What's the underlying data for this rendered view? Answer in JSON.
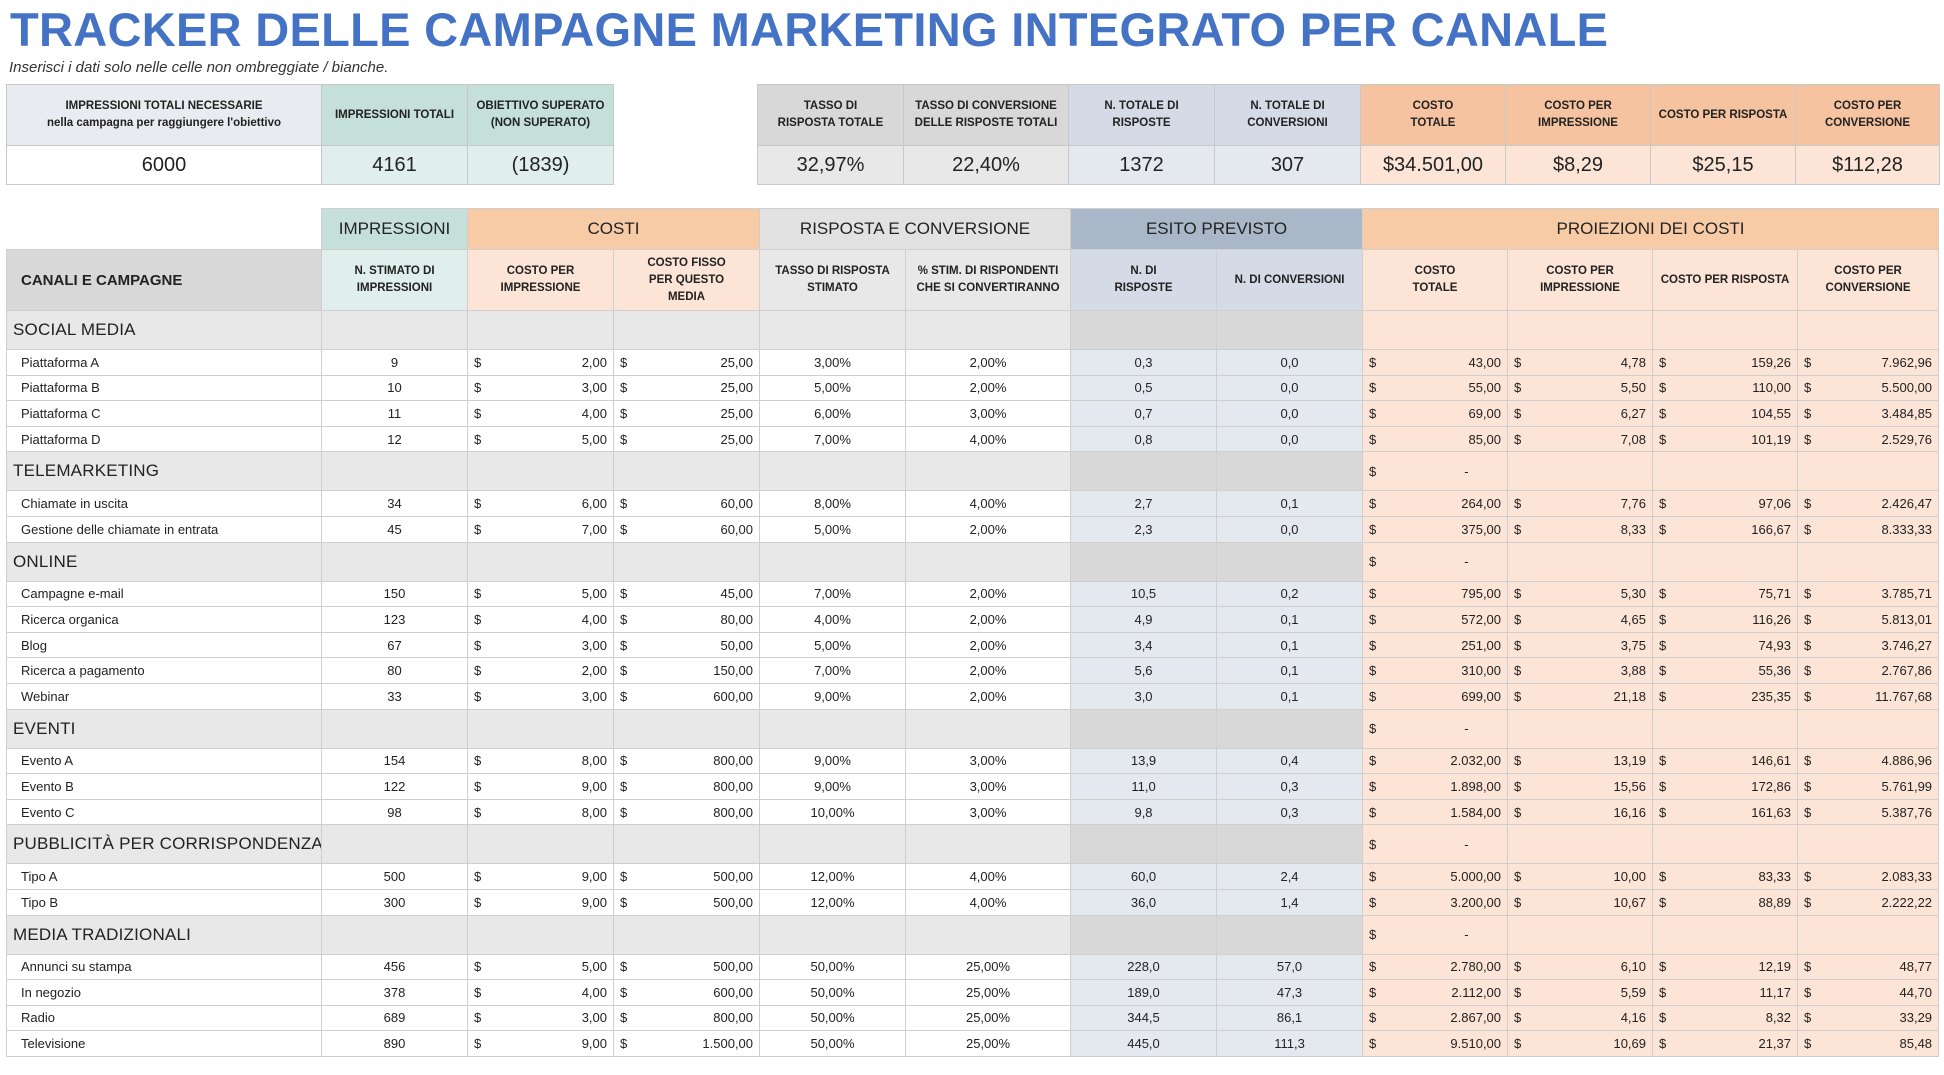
{
  "header": {
    "title": "TRACKER DELLE CAMPAGNE MARKETING INTEGRATO PER CANALE",
    "subtitle": "Inserisci i dati solo nelle celle non ombreggiate / bianche."
  },
  "kpi_left": {
    "labels": [
      "IMPRESSIONI TOTALI NECESSARIE\nnella campagna per raggiungere l'obiettivo",
      "IMPRESSIONI TOTALI",
      "OBIETTIVO SUPERATO\n(NON SUPERATO)"
    ],
    "values": [
      "6000",
      "4161",
      "(1839)"
    ]
  },
  "kpi_right": {
    "labels": [
      "TASSO DI\nRISPOSTA TOTALE",
      "TASSO DI CONVERSIONE\nDELLE RISPOSTE TOTALI",
      "N. TOTALE DI\nRISPOSTE",
      "N. TOTALE DI\nCONVERSIONI",
      "COSTO\nTOTALE",
      "COSTO PER\nIMPRESSIONE",
      "COSTO PER RISPOSTA",
      "COSTO PER\nCONVERSIONE"
    ],
    "values": [
      "32,97%",
      "22,40%",
      "1372",
      "307",
      "$34.501,00",
      "$8,29",
      "$25,15",
      "$112,28"
    ]
  },
  "groups": [
    "IMPRESSIONI",
    "COSTI",
    "RISPOSTA E CONVERSIONE",
    "ESITO PREVISTO",
    "PROIEZIONI DEI COSTI"
  ],
  "columns": [
    "CANALI E CAMPAGNE",
    "N. STIMATO DI\nIMPRESSIONI",
    "COSTO PER\nIMPRESSIONE",
    "COSTO FISSO\nPER QUESTO\nMEDIA",
    "TASSO DI RISPOSTA\nSTIMATO",
    "% STIM. DI RISPONDENTI\nCHE SI CONVERTIRANNO",
    "N. DI\nRISPOSTE",
    "N. DI CONVERSIONI",
    "COSTO\nTOTALE",
    "COSTO PER\nIMPRESSIONE",
    "COSTO PER RISPOSTA",
    "COSTO PER\nCONVERSIONE"
  ],
  "currency_symbol": "$",
  "dash": "-",
  "sections": [
    {
      "name": "SOCIAL MEDIA",
      "total": "",
      "rows": [
        [
          "Piattaforma A",
          "9",
          "2,00",
          "25,00",
          "3,00%",
          "2,00%",
          "0,3",
          "0,0",
          "43,00",
          "4,78",
          "159,26",
          "7.962,96"
        ],
        [
          "Piattaforma B",
          "10",
          "3,00",
          "25,00",
          "5,00%",
          "2,00%",
          "0,5",
          "0,0",
          "55,00",
          "5,50",
          "110,00",
          "5.500,00"
        ],
        [
          "Piattaforma C",
          "11",
          "4,00",
          "25,00",
          "6,00%",
          "3,00%",
          "0,7",
          "0,0",
          "69,00",
          "6,27",
          "104,55",
          "3.484,85"
        ],
        [
          "Piattaforma D",
          "12",
          "5,00",
          "25,00",
          "7,00%",
          "4,00%",
          "0,8",
          "0,0",
          "85,00",
          "7,08",
          "101,19",
          "2.529,76"
        ]
      ]
    },
    {
      "name": "TELEMARKETING",
      "total": "-",
      "rows": [
        [
          "Chiamate in uscita",
          "34",
          "6,00",
          "60,00",
          "8,00%",
          "4,00%",
          "2,7",
          "0,1",
          "264,00",
          "7,76",
          "97,06",
          "2.426,47"
        ],
        [
          "Gestione delle chiamate in entrata",
          "45",
          "7,00",
          "60,00",
          "5,00%",
          "2,00%",
          "2,3",
          "0,0",
          "375,00",
          "8,33",
          "166,67",
          "8.333,33"
        ]
      ]
    },
    {
      "name": "ONLINE",
      "total": "-",
      "rows": [
        [
          "Campagne e-mail",
          "150",
          "5,00",
          "45,00",
          "7,00%",
          "2,00%",
          "10,5",
          "0,2",
          "795,00",
          "5,30",
          "75,71",
          "3.785,71"
        ],
        [
          "Ricerca organica",
          "123",
          "4,00",
          "80,00",
          "4,00%",
          "2,00%",
          "4,9",
          "0,1",
          "572,00",
          "4,65",
          "116,26",
          "5.813,01"
        ],
        [
          "Blog",
          "67",
          "3,00",
          "50,00",
          "5,00%",
          "2,00%",
          "3,4",
          "0,1",
          "251,00",
          "3,75",
          "74,93",
          "3.746,27"
        ],
        [
          "Ricerca a pagamento",
          "80",
          "2,00",
          "150,00",
          "7,00%",
          "2,00%",
          "5,6",
          "0,1",
          "310,00",
          "3,88",
          "55,36",
          "2.767,86"
        ],
        [
          "Webinar",
          "33",
          "3,00",
          "600,00",
          "9,00%",
          "2,00%",
          "3,0",
          "0,1",
          "699,00",
          "21,18",
          "235,35",
          "11.767,68"
        ]
      ]
    },
    {
      "name": "EVENTI",
      "total": "-",
      "rows": [
        [
          "Evento A",
          "154",
          "8,00",
          "800,00",
          "9,00%",
          "3,00%",
          "13,9",
          "0,4",
          "2.032,00",
          "13,19",
          "146,61",
          "4.886,96"
        ],
        [
          "Evento B",
          "122",
          "9,00",
          "800,00",
          "9,00%",
          "3,00%",
          "11,0",
          "0,3",
          "1.898,00",
          "15,56",
          "172,86",
          "5.761,99"
        ],
        [
          "Evento C",
          "98",
          "8,00",
          "800,00",
          "10,00%",
          "3,00%",
          "9,8",
          "0,3",
          "1.584,00",
          "16,16",
          "161,63",
          "5.387,76"
        ]
      ]
    },
    {
      "name": "PUBBLICITÀ PER CORRISPONDENZA",
      "total": "-",
      "rows": [
        [
          "Tipo A",
          "500",
          "9,00",
          "500,00",
          "12,00%",
          "4,00%",
          "60,0",
          "2,4",
          "5.000,00",
          "10,00",
          "83,33",
          "2.083,33"
        ],
        [
          "Tipo B",
          "300",
          "9,00",
          "500,00",
          "12,00%",
          "4,00%",
          "36,0",
          "1,4",
          "3.200,00",
          "10,67",
          "88,89",
          "2.222,22"
        ]
      ]
    },
    {
      "name": "MEDIA TRADIZIONALI",
      "total": "-",
      "rows": [
        [
          "Annunci su stampa",
          "456",
          "5,00",
          "500,00",
          "50,00%",
          "25,00%",
          "228,0",
          "57,0",
          "2.780,00",
          "6,10",
          "12,19",
          "48,77"
        ],
        [
          "In negozio",
          "378",
          "4,00",
          "600,00",
          "50,00%",
          "25,00%",
          "189,0",
          "47,3",
          "2.112,00",
          "5,59",
          "11,17",
          "44,70"
        ],
        [
          "Radio",
          "689",
          "3,00",
          "800,00",
          "50,00%",
          "25,00%",
          "344,5",
          "86,1",
          "2.867,00",
          "4,16",
          "8,32",
          "33,29"
        ],
        [
          "Televisione",
          "890",
          "9,00",
          "1.500,00",
          "50,00%",
          "25,00%",
          "445,0",
          "111,3",
          "9.510,00",
          "10,69",
          "21,37",
          "85,48"
        ]
      ]
    }
  ]
}
